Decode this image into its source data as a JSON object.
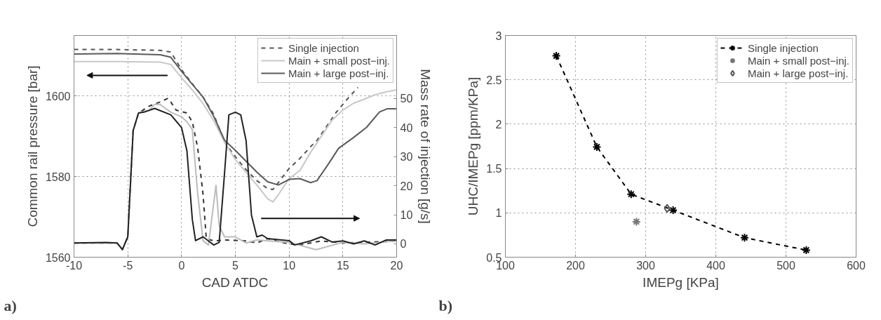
{
  "chart_data": [
    {
      "type": "line",
      "xlabel": "CAD ATDC",
      "ylabel": "Common rail pressure [bar]",
      "y2label": "Mass rate of injection [g/s]",
      "annotations": [
        "a)"
      ],
      "xlim": [
        -10,
        20
      ],
      "xticks": [
        -10,
        -5,
        0,
        5,
        10,
        15,
        20
      ],
      "ylim": [
        1560,
        1615
      ],
      "yticks": [
        1560,
        1580,
        1600
      ],
      "y2lim": [
        -4.6,
        71.7
      ],
      "y2ticks": [
        0,
        10,
        20,
        30,
        40,
        50
      ],
      "grid": true,
      "legend": "top right",
      "series": [
        {
          "name": "Single injection",
          "color": "#555555",
          "line_style": "dashed",
          "x": [
            -10,
            -6,
            -2,
            -1,
            0,
            1,
            2,
            3,
            4,
            5,
            6,
            7,
            8,
            8.5,
            9,
            10,
            11,
            12,
            12.6,
            13.5,
            14.4,
            15.5,
            16.4
          ],
          "values": [
            1611.5,
            1611.5,
            1611.3,
            1610.9,
            1606.5,
            1603,
            1599.7,
            1595.4,
            1588.5,
            1584.9,
            1581.7,
            1579,
            1577,
            1576.8,
            1578.5,
            1582,
            1584.5,
            1587.4,
            1589,
            1592.5,
            1596,
            1599.5,
            1602.1
          ]
        },
        {
          "name": "Main + small post−inj.",
          "color": "#c8c8c8",
          "x": [
            -10,
            -6,
            -2,
            -1,
            0,
            1,
            2,
            3,
            4,
            5,
            6,
            7,
            8,
            8.5,
            9,
            10,
            11,
            12,
            13,
            14,
            15,
            16,
            17,
            18,
            19,
            20
          ],
          "values": [
            1608.5,
            1608.5,
            1608.4,
            1607.8,
            1604.5,
            1601.5,
            1598.1,
            1593.8,
            1588.5,
            1584.2,
            1581.1,
            1577.9,
            1574.5,
            1573.7,
            1575.5,
            1579.5,
            1581.5,
            1586,
            1590,
            1594,
            1596.5,
            1598.2,
            1599.2,
            1600.3,
            1601,
            1601.5
          ]
        },
        {
          "name": "Main + large post−inj.",
          "color": "#5a5a5a",
          "x": [
            -10,
            -6,
            -2,
            -1,
            0,
            1,
            2,
            3,
            4,
            5,
            6,
            7,
            8,
            9,
            10,
            11,
            12,
            12.6,
            13.7,
            14.6,
            16,
            17.2,
            18.4,
            19.1,
            20
          ],
          "values": [
            1610.4,
            1610.5,
            1610.2,
            1609.6,
            1606.1,
            1602.9,
            1599.7,
            1594.9,
            1589,
            1586.5,
            1583.8,
            1581.1,
            1578.7,
            1577.9,
            1579.3,
            1579.5,
            1578.5,
            1579,
            1583.3,
            1587,
            1589.7,
            1592.2,
            1596,
            1596.8,
            1596.8
          ]
        },
        {
          "color": "#333333",
          "line_style": "dashed",
          "axis": "y2",
          "x": [
            -10,
            -6,
            -5.5,
            -5,
            -4.5,
            -4,
            -3,
            -2,
            -1.3,
            -1,
            -0.5,
            0.5,
            1,
            1.5,
            2,
            2.3,
            3,
            4,
            6,
            7,
            8,
            9,
            10,
            11,
            13,
            15,
            17,
            20
          ],
          "values": [
            0.3,
            0.3,
            -2,
            2.4,
            39,
            45,
            47.4,
            48.8,
            50,
            48.8,
            46,
            45,
            42,
            33,
            17,
            1.8,
            1,
            1.3,
            1,
            0.3,
            1.8,
            0.8,
            0,
            -0.4,
            1,
            0.3,
            0.5,
            1
          ]
        },
        {
          "color": "#bbbbbb",
          "axis": "y2",
          "x": [
            -10,
            -6,
            -5.5,
            -5,
            -4.5,
            -4,
            -3,
            -2.5,
            -2,
            -1.5,
            -1,
            0,
            0.5,
            1,
            1.5,
            2,
            2.5,
            3.2,
            3.5,
            4,
            5,
            6,
            7,
            10,
            12.5,
            15,
            17,
            20
          ],
          "values": [
            0.3,
            0.3,
            -2,
            2.4,
            39,
            45,
            46,
            48,
            48,
            46.6,
            45.3,
            43.7,
            42,
            39.3,
            17.2,
            1.1,
            -0.4,
            20.1,
            6.2,
            2.4,
            2.4,
            0.3,
            1.3,
            0.5,
            -2,
            0.5,
            0,
            1
          ]
        },
        {
          "color": "#222222",
          "axis": "y2",
          "x": [
            -10,
            -7,
            -6,
            -5.5,
            -5,
            -4.5,
            -4,
            -3.5,
            -2.5,
            -1,
            0,
            0.5,
            1,
            1.3,
            2,
            2.5,
            3,
            3.5,
            4,
            4.4,
            5,
            5.5,
            6,
            6.5,
            7,
            7.5,
            8,
            10,
            10.5,
            12,
            13,
            14,
            15,
            16,
            17,
            18,
            19,
            20
          ],
          "values": [
            0.3,
            0.5,
            0.3,
            -2,
            2.4,
            39,
            45,
            45.3,
            46.6,
            44.4,
            40,
            32,
            8.4,
            1.1,
            2.4,
            1,
            -0.4,
            0.5,
            24.5,
            44.4,
            45.3,
            44.4,
            35.5,
            9.9,
            2.4,
            3,
            1.8,
            1.1,
            -0.4,
            1,
            2.4,
            0.6,
            1,
            0,
            1,
            -0.4,
            1.3,
            1.3
          ]
        }
      ]
    },
    {
      "type": "scatter",
      "xlabel": "IMEPg [KPa]",
      "ylabel": "UHC/IMEPg [ppm/KPa]",
      "annotations": [
        "b)"
      ],
      "xlim": [
        100,
        600
      ],
      "xticks": [
        100,
        200,
        300,
        400,
        500,
        600
      ],
      "ylim": [
        0.5,
        3
      ],
      "yticks": [
        0.5,
        1,
        1.5,
        2,
        2.5,
        3
      ],
      "grid": true,
      "legend": "top right",
      "series": [
        {
          "name": "Single injection",
          "type": "line",
          "color": "#000000",
          "line_style": "dashed",
          "marker": "cross",
          "x": [
            172.6,
            230.4,
            279.3,
            339.1,
            441,
            528.9
          ],
          "values": [
            2.77,
            1.743,
            1.21,
            1.03,
            0.72,
            0.58
          ]
        },
        {
          "name": "Main + small post−inj.",
          "color": "#777777",
          "marker": "cross",
          "x": [
            286.8
          ],
          "values": [
            0.9
          ]
        },
        {
          "name": "Main + large post−inj.",
          "color": "#555555",
          "marker": "diamond",
          "x": [
            330.6
          ],
          "values": [
            1.05
          ]
        }
      ]
    }
  ]
}
